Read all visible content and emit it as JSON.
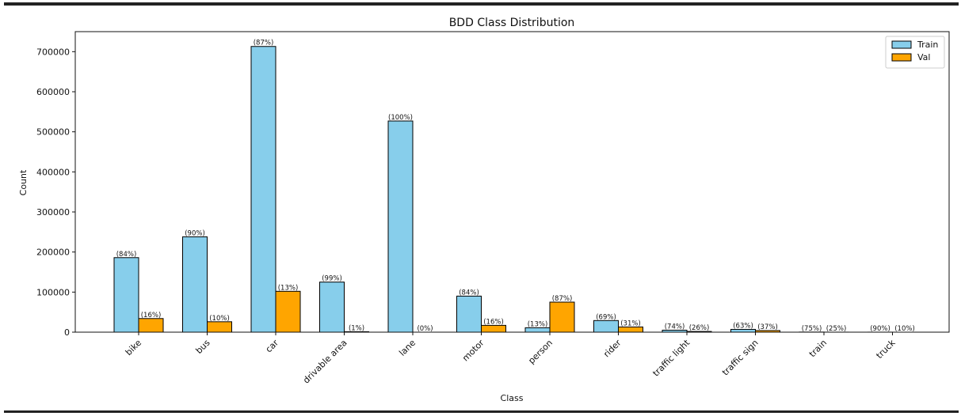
{
  "chart_data": {
    "type": "bar",
    "title": "BDD Class Distribution",
    "xlabel": "Class",
    "ylabel": "Count",
    "ylim": [
      0,
      750000
    ],
    "yticks": [
      0,
      100000,
      200000,
      300000,
      400000,
      500000,
      600000,
      700000
    ],
    "categories": [
      "bike",
      "bus",
      "car",
      "drivable area",
      "lane",
      "motor",
      "person",
      "rider",
      "traffic light",
      "traffic sign",
      "train",
      "truck"
    ],
    "series": [
      {
        "name": "Train",
        "color": "#87CEEB",
        "values": [
          186000,
          238000,
          713000,
          125000,
          527000,
          90000,
          11000,
          29000,
          5000,
          7000,
          300,
          100
        ],
        "labels": [
          "(84%)",
          "(90%)",
          "(87%)",
          "(99%)",
          "(100%)",
          "(84%)",
          "(13%)",
          "(69%)",
          "(74%)",
          "(63%)",
          "(75%)",
          "(90%)"
        ]
      },
      {
        "name": "Val",
        "color": "#FFA500",
        "values": [
          34000,
          26000,
          102000,
          1200,
          0,
          17000,
          75000,
          13000,
          1800,
          4000,
          100,
          10
        ],
        "labels": [
          "(16%)",
          "(10%)",
          "(13%)",
          "(1%)",
          "(0%)",
          "(16%)",
          "(87%)",
          "(31%)",
          "(26%)",
          "(37%)",
          "(25%)",
          "(10%)"
        ]
      }
    ],
    "legend": "top-right",
    "grid": false
  }
}
